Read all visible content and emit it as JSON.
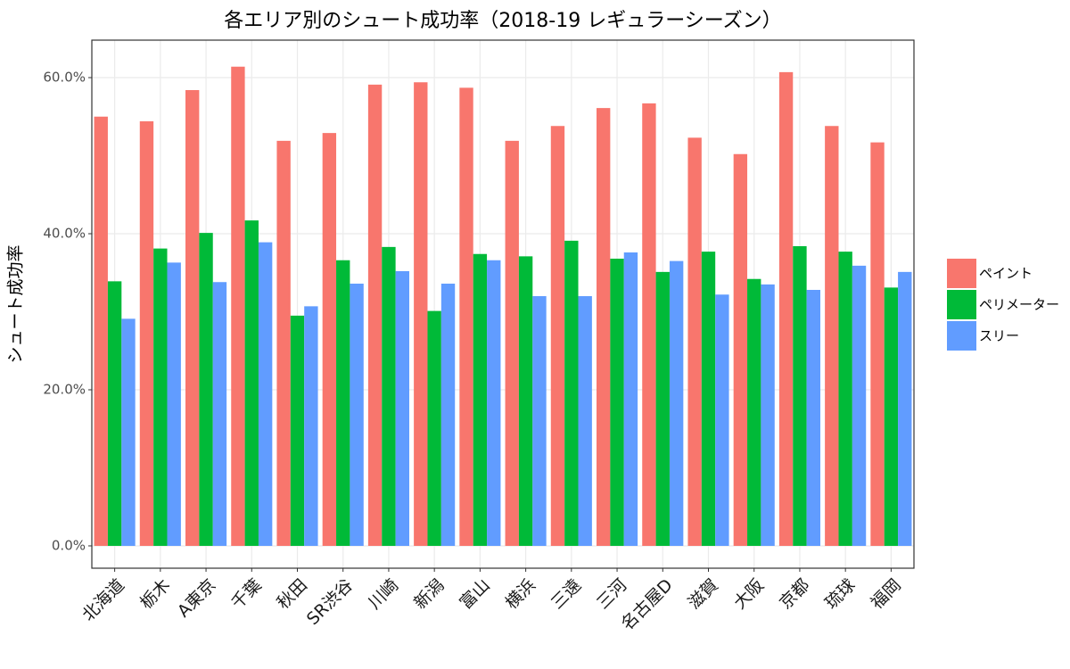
{
  "chart_data": {
    "type": "bar",
    "title": "各エリア別のシュート成功率（2018-19 レギュラーシーズン）",
    "y_label": "シュート成功率",
    "categories": [
      "北海道",
      "栃木",
      "A東京",
      "千葉",
      "秋田",
      "SR渋谷",
      "川崎",
      "新潟",
      "富山",
      "横浜",
      "三遠",
      "三河",
      "名古屋D",
      "滋賀",
      "大阪",
      "京都",
      "琉球",
      "福岡"
    ],
    "series": [
      {
        "name": "ペイント",
        "color": "#f8766d",
        "values": [
          55.0,
          54.4,
          58.4,
          61.4,
          51.9,
          52.9,
          59.1,
          59.4,
          58.7,
          51.9,
          53.8,
          56.1,
          56.7,
          52.3,
          50.2,
          60.7,
          53.8,
          51.7
        ]
      },
      {
        "name": "ペリメーター",
        "color": "#00ba38",
        "values": [
          33.9,
          38.1,
          40.1,
          41.7,
          29.5,
          36.6,
          38.3,
          30.1,
          37.4,
          37.1,
          39.1,
          36.8,
          35.1,
          37.7,
          34.2,
          38.4,
          37.7,
          33.1
        ]
      },
      {
        "name": "スリー",
        "color": "#619cff",
        "values": [
          29.1,
          36.3,
          33.8,
          38.9,
          30.7,
          33.6,
          35.2,
          33.6,
          36.6,
          32.0,
          32.0,
          37.6,
          36.5,
          32.2,
          33.5,
          32.8,
          35.9,
          35.1
        ]
      }
    ],
    "ylim": [
      -2.86,
      64.8
    ],
    "yticks": [
      {
        "value": 0,
        "label": "0.0%"
      },
      {
        "value": 20,
        "label": "20.0%"
      },
      {
        "value": 40,
        "label": "40.0%"
      },
      {
        "value": 60,
        "label": "60.0%"
      }
    ],
    "grid": true,
    "legend": "right"
  }
}
